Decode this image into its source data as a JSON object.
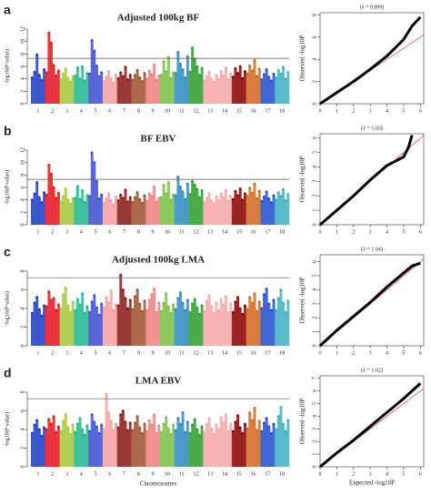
{
  "chart_data": [
    {
      "type": "manhattan",
      "panel_label": "a",
      "title": "Adjusted 100kg BF",
      "ylabel": "-log10(P-value)",
      "ylim": [
        0,
        12
      ],
      "yticks": [
        0,
        2,
        4,
        6,
        8,
        10,
        12
      ],
      "threshold": 7.3,
      "threshold_color": "#555555",
      "categories": [
        "1",
        "2",
        "3",
        "4",
        "5",
        "6",
        "7",
        "8",
        "9",
        "10",
        "11",
        "12",
        "13",
        "14",
        "15",
        "16",
        "17",
        "18"
      ],
      "colors": [
        "#1a3cc8",
        "#e8151b",
        "#a6c83a",
        "#1fb890",
        "#3d4fd0",
        "#f4a0a0",
        "#8b1a1a",
        "#a0522d",
        "#f08080",
        "#7bc043",
        "#2e8bc0",
        "#2ca02c",
        "#f7a8a8",
        "#f4a8a8",
        "#8b0000",
        "#d2691e",
        "#2050d0",
        "#40b0c0"
      ],
      "values": [
        [
          4.2,
          5.1,
          7.9,
          4.6,
          3.8,
          5.5
        ],
        [
          5.0,
          11.4,
          9.8,
          6.2,
          4.5,
          5.3
        ],
        [
          3.9,
          4.8,
          5.6,
          4.1,
          3.5,
          4.4
        ],
        [
          4.5,
          5.8,
          4.0,
          6.0,
          3.7,
          4.9
        ],
        [
          4.8,
          10.2,
          8.5,
          6.1,
          4.4,
          5.0
        ],
        [
          3.6,
          4.3,
          5.2,
          4.0,
          3.3,
          4.7
        ],
        [
          4.1,
          5.0,
          4.4,
          5.9,
          3.9,
          4.6
        ],
        [
          3.8,
          4.6,
          5.4,
          4.2,
          3.6,
          4.9
        ],
        [
          4.0,
          5.3,
          4.7,
          6.3,
          3.8,
          4.5
        ],
        [
          4.6,
          6.8,
          5.2,
          7.5,
          4.1,
          5.0
        ],
        [
          4.9,
          8.3,
          6.4,
          5.5,
          4.2,
          7.6
        ],
        [
          5.1,
          9.0,
          7.2,
          6.0,
          4.6,
          5.7
        ],
        [
          3.7,
          4.4,
          5.1,
          4.0,
          3.5,
          4.6
        ],
        [
          4.0,
          5.2,
          4.5,
          5.8,
          3.9,
          4.8
        ],
        [
          4.3,
          5.7,
          4.9,
          6.0,
          4.1,
          5.2
        ],
        [
          4.8,
          6.1,
          5.3,
          7.0,
          4.4,
          5.6
        ],
        [
          3.9,
          4.7,
          5.5,
          4.3,
          3.7,
          4.8
        ],
        [
          4.2,
          5.4,
          4.8,
          5.9,
          4.0,
          5.1
        ]
      ]
    },
    {
      "type": "qq",
      "subtitle": "(λ = 0.999)",
      "ylabel": "Observed -log10P",
      "xlim": [
        0,
        6.2
      ],
      "xticks": [
        0,
        1,
        2,
        3,
        4,
        5,
        6
      ],
      "ylim": [
        0,
        8.2
      ],
      "yticks": [
        0,
        2,
        4,
        6,
        8
      ],
      "x": [
        0,
        1,
        2,
        3,
        4,
        5,
        5.5,
        6
      ],
      "y": [
        0,
        1.0,
        2.0,
        3.1,
        4.3,
        5.8,
        7.0,
        7.8
      ],
      "color": "#000000",
      "ref_color": "#e03030"
    },
    {
      "type": "manhattan",
      "panel_label": "b",
      "title": "BF EBV",
      "ylabel": "-log10(P-value)",
      "ylim": [
        0,
        12
      ],
      "yticks": [
        0,
        2,
        4,
        6,
        8,
        10,
        12
      ],
      "threshold": 7.3,
      "threshold_color": "#555555",
      "categories": [
        "1",
        "2",
        "3",
        "4",
        "5",
        "6",
        "7",
        "8",
        "9",
        "10",
        "11",
        "12",
        "13",
        "14",
        "15",
        "16",
        "17",
        "18"
      ],
      "colors": [
        "#1a3cc8",
        "#e8151b",
        "#a6c83a",
        "#1fb890",
        "#3d4fd0",
        "#f4a0a0",
        "#8b1a1a",
        "#a0522d",
        "#f08080",
        "#7bc043",
        "#2e8bc0",
        "#2ca02c",
        "#f7a8a8",
        "#f4a8a8",
        "#8b0000",
        "#d2691e",
        "#2050d0",
        "#40b0c0"
      ],
      "values": [
        [
          4.0,
          5.0,
          6.8,
          4.4,
          3.6,
          5.2
        ],
        [
          4.8,
          9.6,
          8.2,
          6.0,
          4.3,
          5.1
        ],
        [
          3.7,
          4.6,
          5.8,
          4.0,
          3.4,
          4.2
        ],
        [
          4.3,
          6.2,
          4.1,
          5.5,
          3.6,
          4.7
        ],
        [
          4.6,
          11.6,
          10.0,
          7.0,
          4.2,
          4.8
        ],
        [
          3.5,
          4.2,
          5.0,
          3.9,
          3.2,
          4.5
        ],
        [
          3.9,
          4.8,
          4.3,
          5.6,
          3.7,
          4.4
        ],
        [
          3.6,
          4.4,
          5.2,
          4.1,
          3.5,
          4.7
        ],
        [
          3.8,
          5.0,
          4.6,
          6.1,
          3.7,
          4.3
        ],
        [
          4.4,
          6.4,
          5.0,
          6.8,
          4.0,
          4.8
        ],
        [
          4.7,
          7.7,
          6.1,
          5.3,
          4.1,
          6.6
        ],
        [
          4.9,
          7.0,
          6.4,
          5.7,
          4.4,
          5.5
        ],
        [
          3.6,
          4.3,
          5.0,
          3.9,
          3.4,
          4.5
        ],
        [
          3.9,
          5.0,
          4.4,
          5.5,
          3.8,
          4.6
        ],
        [
          4.1,
          5.4,
          4.7,
          5.8,
          4.0,
          5.0
        ],
        [
          4.6,
          5.9,
          5.1,
          6.6,
          4.2,
          5.4
        ],
        [
          3.8,
          4.5,
          5.3,
          4.2,
          3.6,
          4.7
        ],
        [
          4.0,
          5.2,
          4.6,
          5.7,
          3.9,
          4.9
        ]
      ]
    },
    {
      "type": "qq",
      "subtitle": "(λ = 1.03)",
      "ylabel": "Observed -log10P",
      "xlim": [
        0,
        6.2
      ],
      "xticks": [
        0,
        1,
        2,
        3,
        4,
        5,
        6
      ],
      "ylim": [
        0,
        6.3
      ],
      "yticks": [
        0,
        1,
        2,
        3,
        4,
        5,
        6
      ],
      "x": [
        0,
        1,
        2,
        3,
        4,
        5,
        5.3,
        5.5
      ],
      "y": [
        0,
        1.0,
        2.0,
        3.1,
        4.1,
        4.7,
        5.4,
        6.2
      ],
      "color": "#000000",
      "ref_color": "#e03030"
    },
    {
      "type": "manhattan",
      "panel_label": "c",
      "title": "Adjusted 100kg LMA",
      "ylabel": "-log10(P-value)",
      "ylim": [
        0,
        8
      ],
      "yticks": [
        0,
        2,
        4,
        6,
        8
      ],
      "threshold": 7.3,
      "threshold_color": "#555555",
      "categories": [
        "1",
        "2",
        "3",
        "4",
        "5",
        "6",
        "7",
        "8",
        "9",
        "10",
        "11",
        "12",
        "13",
        "14",
        "15",
        "16",
        "17",
        "18"
      ],
      "colors": [
        "#1a3cc8",
        "#e8151b",
        "#a6c83a",
        "#1fb890",
        "#3d4fd0",
        "#f4a0a0",
        "#8b1a1a",
        "#a0522d",
        "#f08080",
        "#7bc043",
        "#2e8bc0",
        "#2ca02c",
        "#f7a8a8",
        "#f4a8a8",
        "#8b0000",
        "#d2691e",
        "#2050d0",
        "#40b0c0"
      ],
      "values": [
        [
          3.5,
          4.6,
          5.2,
          3.9,
          3.2,
          4.3
        ],
        [
          4.2,
          5.8,
          4.9,
          5.1,
          3.8,
          4.4
        ],
        [
          4.0,
          5.5,
          6.2,
          4.3,
          3.6,
          4.7
        ],
        [
          3.8,
          5.0,
          4.4,
          5.6,
          3.5,
          4.2
        ],
        [
          3.6,
          4.7,
          5.4,
          4.1,
          3.3,
          4.5
        ],
        [
          4.1,
          5.2,
          4.6,
          5.9,
          3.8,
          4.4
        ],
        [
          4.3,
          7.6,
          6.0,
          5.1,
          4.0,
          4.9
        ],
        [
          3.9,
          5.3,
          6.0,
          4.5,
          3.7,
          4.8
        ],
        [
          3.8,
          4.9,
          5.5,
          6.1,
          3.6,
          4.6
        ],
        [
          3.7,
          4.6,
          5.6,
          4.2,
          3.5,
          4.4
        ],
        [
          3.9,
          5.1,
          5.7,
          4.6,
          3.8,
          4.9
        ],
        [
          3.6,
          4.5,
          5.0,
          4.1,
          3.4,
          4.3
        ],
        [
          3.7,
          4.8,
          5.4,
          4.2,
          3.5,
          4.6
        ],
        [
          3.8,
          5.0,
          4.4,
          5.3,
          3.6,
          4.5
        ],
        [
          3.6,
          4.7,
          5.2,
          4.0,
          3.4,
          4.3
        ],
        [
          3.9,
          5.2,
          4.6,
          5.6,
          3.7,
          4.7
        ],
        [
          4.0,
          5.5,
          6.1,
          4.5,
          3.8,
          4.9
        ],
        [
          3.8,
          5.1,
          6.0,
          4.6,
          3.6,
          4.8
        ]
      ]
    },
    {
      "type": "qq",
      "subtitle": "(λ = 1.04)",
      "ylabel": "Observed -log10P",
      "xlim": [
        0,
        6.2
      ],
      "xticks": [
        0,
        1,
        2,
        3,
        4,
        5,
        6
      ],
      "ylim": [
        0,
        6.5
      ],
      "yticks": [
        0,
        1,
        2,
        3,
        4,
        5,
        6
      ],
      "x": [
        0,
        1,
        2,
        3,
        4,
        5,
        5.5,
        6
      ],
      "y": [
        0,
        1.1,
        2.1,
        3.1,
        4.2,
        5.2,
        5.7,
        5.9
      ],
      "color": "#000000",
      "ref_color": "#e03030"
    },
    {
      "type": "manhattan",
      "panel_label": "d",
      "title": "LMA EBV",
      "ylabel": "-log10(P-value)",
      "xlabel": "Chromosomes",
      "ylim": [
        0,
        8
      ],
      "yticks": [
        0,
        2,
        4,
        6,
        8
      ],
      "threshold": 7.3,
      "threshold_color": "#555555",
      "categories": [
        "1",
        "2",
        "3",
        "4",
        "5",
        "6",
        "7",
        "8",
        "9",
        "10",
        "11",
        "12",
        "13",
        "14",
        "15",
        "16",
        "17",
        "18"
      ],
      "colors": [
        "#1a3cc8",
        "#e8151b",
        "#a6c83a",
        "#1fb890",
        "#3d4fd0",
        "#f4a0a0",
        "#8b1a1a",
        "#a0522d",
        "#f08080",
        "#7bc043",
        "#2e8bc0",
        "#2ca02c",
        "#f7a8a8",
        "#f4a8a8",
        "#8b0000",
        "#d2691e",
        "#2050d0",
        "#40b0c0"
      ],
      "values": [
        [
          3.6,
          4.5,
          5.0,
          4.0,
          3.3,
          4.2
        ],
        [
          4.0,
          5.1,
          4.6,
          5.4,
          3.7,
          4.3
        ],
        [
          3.8,
          4.9,
          5.6,
          4.2,
          3.5,
          4.5
        ],
        [
          3.7,
          4.6,
          5.2,
          4.0,
          3.4,
          4.4
        ],
        [
          3.8,
          5.6,
          4.8,
          4.3,
          3.6,
          4.5
        ],
        [
          4.0,
          7.8,
          5.8,
          4.9,
          3.9,
          4.6
        ],
        [
          4.2,
          5.6,
          6.0,
          4.8,
          3.9,
          4.7
        ],
        [
          3.9,
          4.7,
          5.4,
          4.2,
          3.6,
          4.6
        ],
        [
          3.8,
          5.0,
          4.5,
          5.6,
          3.6,
          4.4
        ],
        [
          3.7,
          4.6,
          5.3,
          4.1,
          3.5,
          4.5
        ],
        [
          3.9,
          5.2,
          4.6,
          5.8,
          3.7,
          4.8
        ],
        [
          3.6,
          4.5,
          5.1,
          4.0,
          3.4,
          4.3
        ],
        [
          3.7,
          4.6,
          5.2,
          4.1,
          3.5,
          4.5
        ],
        [
          4.0,
          5.3,
          4.7,
          5.6,
          3.8,
          4.6
        ],
        [
          3.8,
          4.8,
          5.5,
          4.2,
          3.6,
          4.6
        ],
        [
          4.1,
          5.8,
          5.0,
          6.3,
          3.9,
          4.9
        ],
        [
          3.8,
          4.7,
          5.2,
          4.3,
          3.6,
          4.6
        ],
        [
          4.0,
          5.4,
          6.4,
          4.6,
          3.8,
          5.0
        ]
      ]
    },
    {
      "type": "qq",
      "subtitle": "(λ = 1.02)",
      "ylabel": "Observed -log10P",
      "xlabel": "Expected -log10P",
      "xlim": [
        0,
        6.2
      ],
      "xticks": [
        0,
        1,
        2,
        3,
        4,
        5,
        6
      ],
      "ylim": [
        0,
        7.2
      ],
      "yticks": [
        0,
        1,
        2,
        3,
        4,
        5,
        6,
        7
      ],
      "x": [
        0,
        1,
        2,
        3,
        4,
        5,
        5.5,
        6
      ],
      "y": [
        0,
        1.1,
        2.1,
        3.2,
        4.3,
        5.4,
        6.0,
        6.6
      ],
      "color": "#000000",
      "ref_color": "#e03030"
    }
  ]
}
